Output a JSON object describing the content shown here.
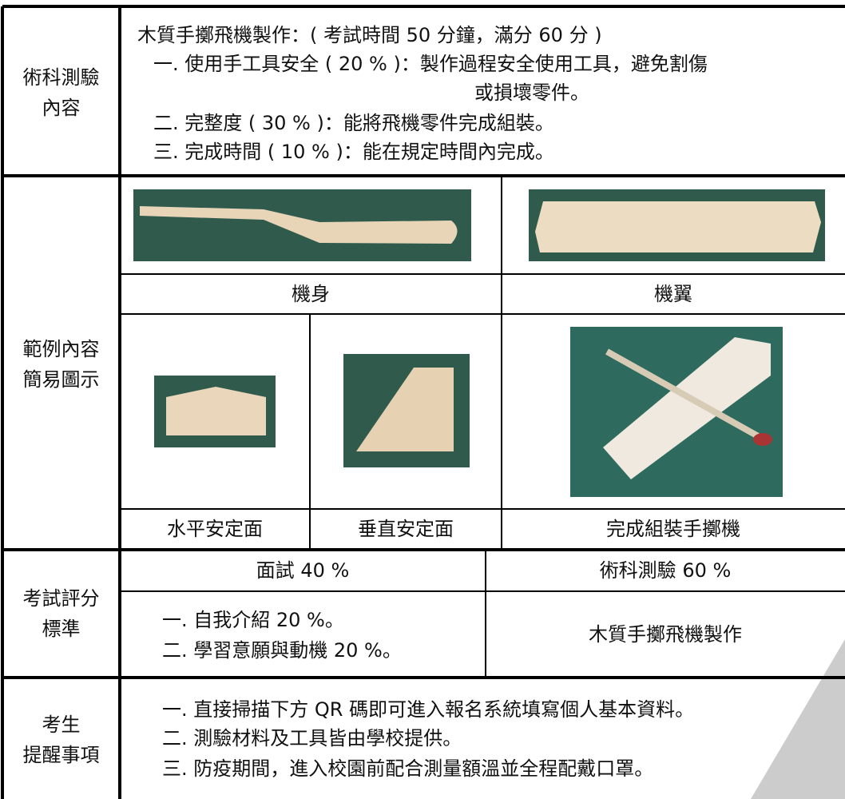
{
  "exam_content": {
    "label": [
      "術科測驗",
      "內容"
    ],
    "lines": [
      "木質手擲飛機製作：( 考試時間 50 分鐘，滿分 60 分 )",
      "一. 使用手工具安全 ( 20 % )：製作過程安全使用工具，避免割傷",
      "或損壞零件。",
      "二. 完整度 ( 30 % )：能將飛機零件完成組裝。",
      "三. 完成時間 ( 10 % )：能在規定時間內完成。"
    ]
  },
  "examples": {
    "label": [
      "範例內容",
      "簡易圖示"
    ],
    "captions": [
      "機身",
      "機翼",
      "水平安定面",
      "垂直安定面",
      "完成組裝手擲機"
    ]
  },
  "scoring": {
    "label": [
      "考試評分",
      "標準"
    ],
    "headers": [
      "面試 40 %",
      "術科測驗 60 %"
    ],
    "interview": [
      "一. 自我介紹 20 %。",
      "二. 學習意願與動機 20 %。"
    ],
    "practical": "木質手擲飛機製作"
  },
  "reminders": {
    "label": [
      "考生",
      "提醒事項"
    ],
    "lines": [
      "一. 直接掃描下方 QR 碼即可進入報名系統填寫個人基本資料。",
      "二. 測驗材料及工具皆由學校提供。",
      "三. 防疫期間，進入校園前配合測量額溫並全程配戴口罩。"
    ]
  }
}
